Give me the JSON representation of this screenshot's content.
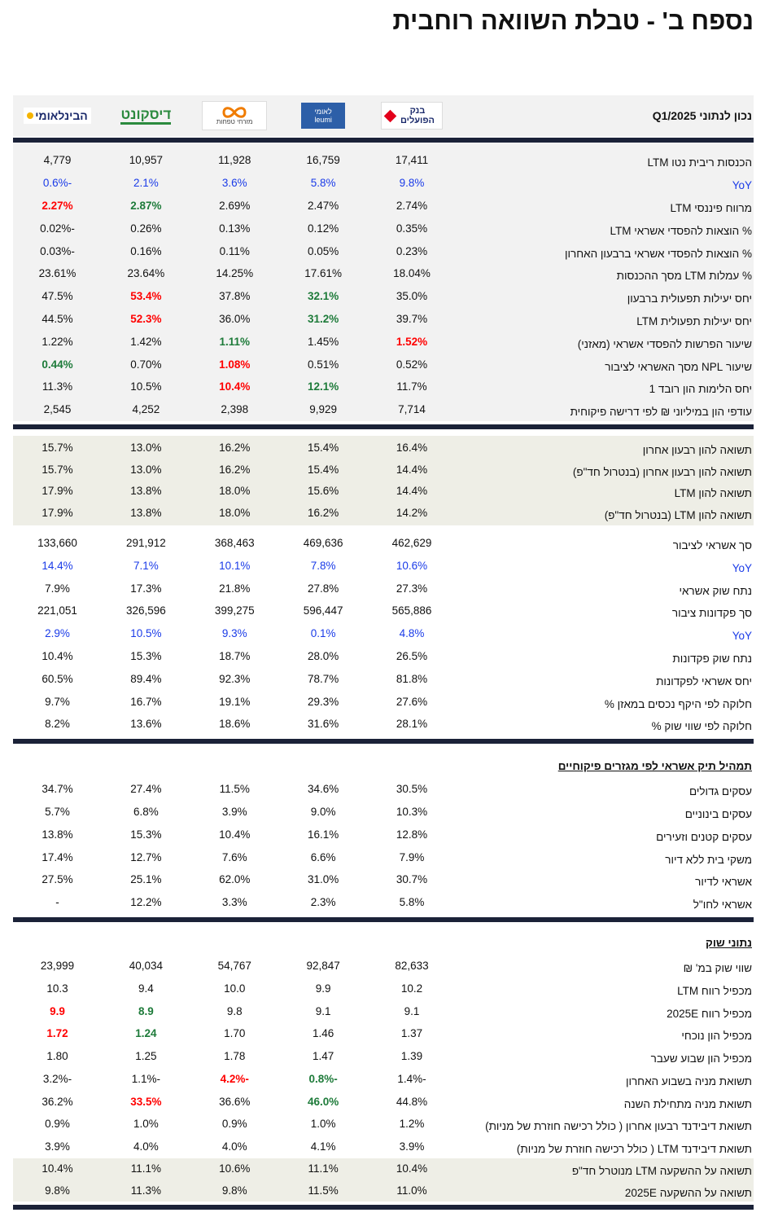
{
  "title": "נספח ב' - טבלת השוואה רוחבית",
  "header": {
    "label": "נכון לנתוני Q1/2025",
    "banks": [
      {
        "name": "בנק הפועלים"
      },
      {
        "name": "לאומי",
        "sub": "leumi"
      },
      {
        "name": "מזרחי טפחות"
      },
      {
        "name": "דיסקונט"
      },
      {
        "name": "הבינלאומי"
      }
    ]
  },
  "styles": {
    "red": "#ff0000",
    "green": "#1e7b3a",
    "blue": "#1a3be8",
    "rule": "#1b2238"
  },
  "sections": [
    {
      "background": "#f2f2f2",
      "rows": [
        {
          "label": "הכנסות ריבית נטו LTM",
          "values": [
            "17,411",
            "16,759",
            "11,928",
            "10,957",
            "4,779"
          ]
        },
        {
          "label": "YoY",
          "color": "blue",
          "values": [
            "9.8%",
            "5.8%",
            "3.6%",
            "2.1%",
            "-0.6%"
          ]
        },
        {
          "label": "מרווח פיננסי LTM",
          "values": [
            "2.74%",
            "2.47%",
            "2.69%",
            "2.87%",
            "2.27%"
          ],
          "green": 3,
          "red": 4
        },
        {
          "label": "% הוצאות להפסדי אשראי LTM",
          "values": [
            "0.35%",
            "0.12%",
            "0.13%",
            "0.26%",
            "-0.02%"
          ]
        },
        {
          "label": "% הוצאות להפסדי אשראי ברבעון האחרון",
          "values": [
            "0.23%",
            "0.05%",
            "0.11%",
            "0.16%",
            "-0.03%"
          ]
        },
        {
          "label": "% עמלות LTM מסך ההכנסות",
          "values": [
            "18.04%",
            "17.61%",
            "14.25%",
            "23.64%",
            "23.61%"
          ]
        },
        {
          "label": "יחס יעילות תפעולית ברבעון",
          "values": [
            "35.0%",
            "32.1%",
            "37.8%",
            "53.4%",
            "47.5%"
          ],
          "green": 1,
          "red": 3
        },
        {
          "label": "יחס יעילות תפעולית LTM",
          "values": [
            "39.7%",
            "31.2%",
            "36.0%",
            "52.3%",
            "44.5%"
          ],
          "green": 1,
          "red": 3
        },
        {
          "label": "שיעור הפרשות להפסדי אשראי (מאזני)",
          "values": [
            "1.52%",
            "1.45%",
            "1.11%",
            "1.42%",
            "1.22%"
          ],
          "green": 2,
          "red": 0
        },
        {
          "label": "שיעור NPL מסך האשראי לציבור",
          "values": [
            "0.52%",
            "0.51%",
            "1.08%",
            "0.70%",
            "0.44%"
          ],
          "green": 4,
          "red": 2
        },
        {
          "label": "יחס הלימות הון רובד 1",
          "values": [
            "11.7%",
            "12.1%",
            "10.4%",
            "10.5%",
            "11.3%"
          ],
          "green": 1,
          "red": 2
        },
        {
          "label": "עודפי הון במיליוני ₪ לפי דרישה פיקוחית",
          "values": [
            "7,714",
            "9,929",
            "2,398",
            "4,252",
            "2,545"
          ]
        }
      ]
    },
    {
      "background": "#eeeee6",
      "rows": [
        {
          "label": "תשואה להון רבעון אחרון",
          "values": [
            "16.4%",
            "15.4%",
            "16.2%",
            "13.0%",
            "15.7%"
          ]
        },
        {
          "label": "תשואה להון רבעון אחרון (בנטרול חד\"פ)",
          "values": [
            "14.4%",
            "15.4%",
            "16.2%",
            "13.0%",
            "15.7%"
          ]
        },
        {
          "label": "תשואה להון LTM",
          "values": [
            "14.4%",
            "15.6%",
            "18.0%",
            "13.8%",
            "17.9%"
          ]
        },
        {
          "label": "תשואה להון LTM (בנטרול חד\"פ)",
          "values": [
            "14.2%",
            "16.2%",
            "18.0%",
            "13.8%",
            "17.9%"
          ]
        }
      ]
    },
    {
      "background": "#ffffff",
      "rule": true,
      "rows": [
        {
          "label": "סך אשראי לציבור",
          "values": [
            "462,629",
            "469,636",
            "368,463",
            "291,912",
            "133,660"
          ]
        },
        {
          "label": "YoY",
          "color": "blue",
          "values": [
            "10.6%",
            "7.8%",
            "10.1%",
            "7.1%",
            "14.4%"
          ]
        },
        {
          "label": "נתח שוק אשראי",
          "values": [
            "27.3%",
            "27.8%",
            "21.8%",
            "17.3%",
            "7.9%"
          ]
        },
        {
          "label": "סך פקדונות ציבור",
          "values": [
            "565,886",
            "596,447",
            "399,275",
            "326,596",
            "221,051"
          ]
        },
        {
          "label": "YoY",
          "color": "blue",
          "values": [
            "4.8%",
            "0.1%",
            "9.3%",
            "10.5%",
            "2.9%"
          ]
        },
        {
          "label": "נתח שוק פקדונות",
          "values": [
            "26.5%",
            "28.0%",
            "18.7%",
            "15.3%",
            "10.4%"
          ]
        },
        {
          "label": "יחס אשראי לפקדונות",
          "values": [
            "81.8%",
            "78.7%",
            "92.3%",
            "89.4%",
            "60.5%"
          ]
        },
        {
          "label": "חלוקה לפי היקף נכסים במאזן %",
          "values": [
            "27.6%",
            "29.3%",
            "19.1%",
            "16.7%",
            "9.7%"
          ]
        },
        {
          "label": "חלוקה לפי שווי שוק %",
          "values": [
            "28.1%",
            "31.6%",
            "18.6%",
            "13.6%",
            "8.2%"
          ]
        }
      ]
    },
    {
      "background": "#ffffff",
      "rule": true,
      "heading": "תמהיל תיק אשראי לפי מגזרים פיקוחיים",
      "rows": [
        {
          "label": "עסקים גדולים",
          "values": [
            "30.5%",
            "34.6%",
            "11.5%",
            "27.4%",
            "34.7%"
          ]
        },
        {
          "label": "עסקים בינוניים",
          "values": [
            "10.3%",
            "9.0%",
            "3.9%",
            "6.8%",
            "5.7%"
          ]
        },
        {
          "label": "עסקים קטנים וזעירים",
          "values": [
            "12.8%",
            "16.1%",
            "10.4%",
            "15.3%",
            "13.8%"
          ]
        },
        {
          "label": "משקי בית ללא דיור",
          "values": [
            "7.9%",
            "6.6%",
            "7.6%",
            "12.7%",
            "17.4%"
          ]
        },
        {
          "label": "אשראי לדיור",
          "values": [
            "30.7%",
            "31.0%",
            "62.0%",
            "25.1%",
            "27.5%"
          ]
        },
        {
          "label": "אשראי לחו\"ל",
          "values": [
            "5.8%",
            "2.3%",
            "3.3%",
            "12.2%",
            "-"
          ]
        }
      ]
    },
    {
      "background": "#ffffff",
      "heading": "נתוני שוק",
      "rows": [
        {
          "label": "שווי שוק במ' ₪",
          "values": [
            "82,633",
            "92,847",
            "54,767",
            "40,034",
            "23,999"
          ]
        },
        {
          "label": "מכפיל רווח LTM",
          "values": [
            "10.2",
            "9.9",
            "10.0",
            "9.4",
            "10.3"
          ]
        },
        {
          "label": "מכפיל רווח 2025E",
          "values": [
            "9.1",
            "9.1",
            "9.8",
            "8.9",
            "9.9"
          ],
          "green": 3,
          "red": 4
        },
        {
          "label": "מכפיל הון נוכחי",
          "values": [
            "1.37",
            "1.46",
            "1.70",
            "1.24",
            "1.72"
          ],
          "green": 3,
          "red": 4
        },
        {
          "label": "מכפיל הון שבוע שעבר",
          "values": [
            "1.39",
            "1.47",
            "1.78",
            "1.25",
            "1.80"
          ]
        },
        {
          "label": "תשואת מניה בשבוע האחרון",
          "values": [
            "-1.4%",
            "-0.8%",
            "-4.2%",
            "-1.1%",
            "-3.2%"
          ],
          "green": 1,
          "red": 2
        },
        {
          "label": "תשואת מניה מתחילת השנה",
          "values": [
            "44.8%",
            "46.0%",
            "36.6%",
            "33.5%",
            "36.2%"
          ],
          "green": 1,
          "red": 3
        },
        {
          "label": "תשואת דיבידנד רבעון אחרון ( כולל רכישה חוזרת של מניות)",
          "values": [
            "1.2%",
            "1.0%",
            "0.9%",
            "1.0%",
            "0.9%"
          ]
        },
        {
          "label": "תשואת דיבידנד LTM ( כולל רכישה חוזרת של מניות)",
          "values": [
            "3.9%",
            "4.1%",
            "4.0%",
            "4.0%",
            "3.9%"
          ]
        },
        {
          "label": "תשואה על ההשקעה LTM מנוטרל חד\"פ",
          "values": [
            "10.4%",
            "11.1%",
            "10.6%",
            "11.1%",
            "10.4%"
          ],
          "shade": "#eeeee6"
        },
        {
          "label": "תשואה על ההשקעה 2025E",
          "values": [
            "11.0%",
            "11.5%",
            "9.8%",
            "11.3%",
            "9.8%"
          ],
          "shade": "#eeeee6"
        }
      ]
    }
  ]
}
